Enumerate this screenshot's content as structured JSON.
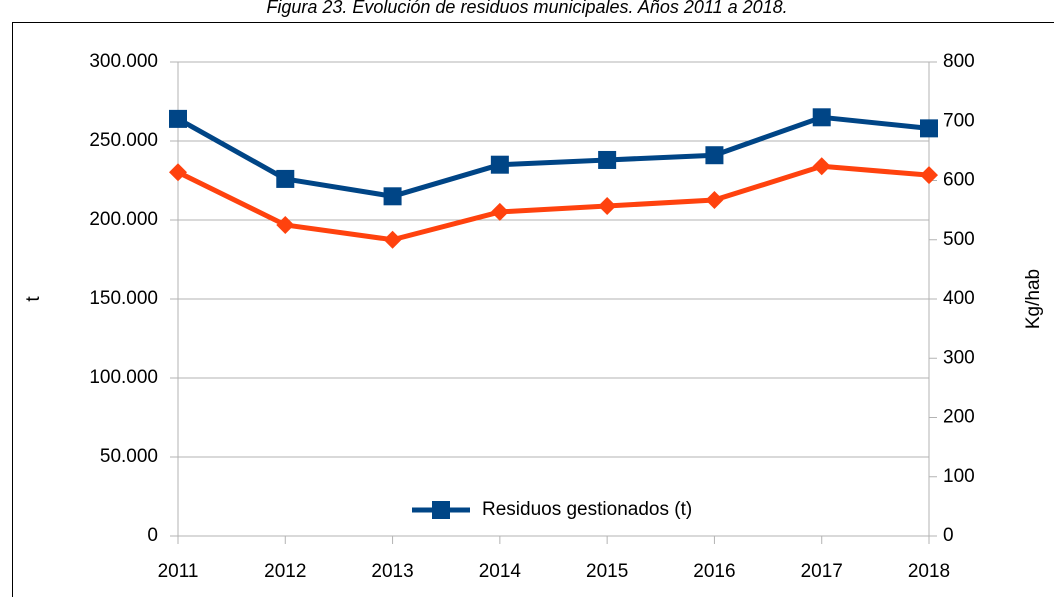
{
  "chart_data": {
    "type": "line",
    "title": "Figura 23. Evolución de residuos municipales. Años 2011 a 2018.",
    "y_label": "t",
    "y2_label": "Kg/hab",
    "categories": [
      "2011",
      "2012",
      "2013",
      "2014",
      "2015",
      "2016",
      "2017",
      "2018"
    ],
    "series": [
      {
        "name": "Residuos gestionados (t)",
        "color": "#004586",
        "marker": "square",
        "values": [
          264000,
          226000,
          215000,
          235000,
          238000,
          241000,
          265000,
          258000
        ]
      },
      {
        "color": "#ff420e",
        "marker": "diamond",
        "axis": "y2",
        "values": [
          614,
          525,
          500,
          547,
          557,
          567,
          624,
          609
        ]
      }
    ],
    "ylim": [
      0,
      300000
    ],
    "yticks": [
      0,
      {
        "value": 50000,
        "label": "50.000"
      },
      {
        "value": 100000,
        "label": "100.000"
      },
      {
        "value": 150000,
        "label": "150.000"
      },
      {
        "value": 200000,
        "label": "200.000"
      },
      {
        "value": 250000,
        "label": "250.000"
      },
      {
        "value": 300000,
        "label": "300.000"
      }
    ],
    "y2lim": [
      0,
      800
    ],
    "y2ticks": [
      0,
      100,
      200,
      300,
      400,
      500,
      600,
      700,
      800
    ],
    "grid": true,
    "legend": "bottom"
  }
}
